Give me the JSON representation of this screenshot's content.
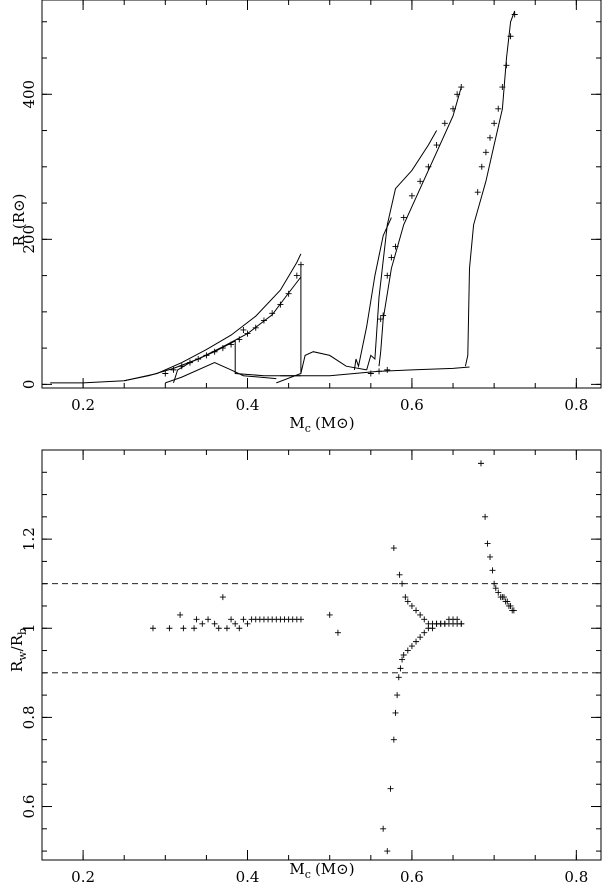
{
  "chart_data": [
    {
      "type": "scatter",
      "xlabel": "M",
      "xlabel_sub": "c",
      "xlabel_unit": "(M⊙)",
      "ylabel": "R",
      "ylabel_unit": "(R⊙)",
      "xlim": [
        0.15,
        0.83
      ],
      "ylim": [
        -5,
        530
      ],
      "xticks": [
        0.2,
        0.4,
        0.6,
        0.8
      ],
      "xtick_labels": [
        "0.2",
        "0.4",
        "0.6",
        "0.8"
      ],
      "yticks": [
        0,
        200,
        400
      ],
      "ytick_labels": [
        "0",
        "200",
        "400"
      ],
      "grid": false,
      "series": [
        {
          "kind": "line",
          "points": [
            [
              0.16,
              2
            ],
            [
              0.2,
              2
            ],
            [
              0.25,
              5
            ],
            [
              0.28,
              12
            ],
            [
              0.31,
              22
            ],
            [
              0.34,
              35
            ],
            [
              0.37,
              52
            ],
            [
              0.4,
              70
            ],
            [
              0.43,
              96
            ],
            [
              0.45,
              126
            ],
            [
              0.465,
              148
            ]
          ]
        },
        {
          "kind": "line",
          "points": [
            [
              0.25,
              5
            ],
            [
              0.29,
              15
            ],
            [
              0.32,
              30
            ],
            [
              0.35,
              48
            ],
            [
              0.38,
              68
            ],
            [
              0.41,
              94
            ],
            [
              0.44,
              130
            ],
            [
              0.46,
              168
            ],
            [
              0.465,
              180
            ]
          ]
        },
        {
          "kind": "line",
          "points": [
            [
              0.465,
              165
            ],
            [
              0.465,
              15
            ]
          ]
        },
        {
          "kind": "line",
          "points": [
            [
              0.31,
              2
            ],
            [
              0.315,
              20
            ],
            [
              0.33,
              30
            ],
            [
              0.36,
              45
            ],
            [
              0.385,
              60
            ],
            [
              0.385,
              15
            ],
            [
              0.42,
              12
            ],
            [
              0.465,
              12
            ]
          ]
        },
        {
          "kind": "line",
          "points": [
            [
              0.3,
              2
            ],
            [
              0.32,
              10
            ],
            [
              0.36,
              30
            ],
            [
              0.38,
              20
            ],
            [
              0.395,
              12
            ],
            [
              0.435,
              8
            ]
          ]
        },
        {
          "kind": "line",
          "points": [
            [
              0.435,
              2
            ],
            [
              0.465,
              15
            ],
            [
              0.47,
              40
            ],
            [
              0.48,
              45
            ],
            [
              0.5,
              40
            ],
            [
              0.52,
              25
            ],
            [
              0.545,
              20
            ]
          ]
        },
        {
          "kind": "line",
          "points": [
            [
              0.44,
              12
            ],
            [
              0.5,
              12
            ],
            [
              0.53,
              15
            ],
            [
              0.56,
              18
            ],
            [
              0.6,
              20
            ],
            [
              0.65,
              22
            ],
            [
              0.67,
              24
            ]
          ]
        },
        {
          "kind": "line",
          "points": [
            [
              0.53,
              20
            ],
            [
              0.532,
              35
            ],
            [
              0.535,
              25
            ],
            [
              0.545,
              80
            ],
            [
              0.555,
              150
            ],
            [
              0.565,
              205
            ],
            [
              0.575,
              230
            ]
          ]
        },
        {
          "kind": "line",
          "points": [
            [
              0.545,
              20
            ],
            [
              0.55,
              40
            ],
            [
              0.555,
              35
            ],
            [
              0.56,
              120
            ],
            [
              0.57,
              220
            ],
            [
              0.58,
              270
            ],
            [
              0.6,
              295
            ],
            [
              0.62,
              330
            ],
            [
              0.63,
              350
            ]
          ]
        },
        {
          "kind": "line",
          "points": [
            [
              0.56,
              25
            ],
            [
              0.562,
              45
            ],
            [
              0.565,
              90
            ],
            [
              0.575,
              160
            ],
            [
              0.59,
              220
            ],
            [
              0.61,
              270
            ],
            [
              0.63,
              320
            ],
            [
              0.65,
              370
            ],
            [
              0.66,
              410
            ]
          ]
        },
        {
          "kind": "line",
          "points": [
            [
              0.665,
              25
            ],
            [
              0.668,
              40
            ],
            [
              0.67,
              160
            ],
            [
              0.675,
              220
            ],
            [
              0.69,
              280
            ],
            [
              0.7,
              330
            ],
            [
              0.71,
              380
            ],
            [
              0.715,
              450
            ],
            [
              0.72,
              500
            ],
            [
              0.725,
              515
            ]
          ]
        },
        {
          "kind": "points",
          "points": [
            [
              0.3,
              15
            ],
            [
              0.31,
              20
            ],
            [
              0.32,
              25
            ],
            [
              0.33,
              30
            ],
            [
              0.34,
              35
            ],
            [
              0.35,
              40
            ],
            [
              0.36,
              45
            ],
            [
              0.37,
              50
            ],
            [
              0.38,
              55
            ],
            [
              0.39,
              62
            ],
            [
              0.4,
              70
            ],
            [
              0.41,
              78
            ],
            [
              0.42,
              88
            ],
            [
              0.43,
              98
            ],
            [
              0.44,
              110
            ],
            [
              0.45,
              125
            ],
            [
              0.46,
              150
            ],
            [
              0.465,
              165
            ],
            [
              0.395,
              75
            ],
            [
              0.55,
              15
            ],
            [
              0.56,
              18
            ],
            [
              0.57,
              20
            ],
            [
              0.562,
              90
            ],
            [
              0.565,
              95
            ],
            [
              0.57,
              150
            ],
            [
              0.575,
              175
            ],
            [
              0.58,
              190
            ],
            [
              0.59,
              230
            ],
            [
              0.6,
              260
            ],
            [
              0.61,
              280
            ],
            [
              0.62,
              300
            ],
            [
              0.63,
              330
            ],
            [
              0.64,
              360
            ],
            [
              0.65,
              380
            ],
            [
              0.655,
              400
            ],
            [
              0.66,
              410
            ],
            [
              0.68,
              265
            ],
            [
              0.685,
              300
            ],
            [
              0.69,
              320
            ],
            [
              0.695,
              340
            ],
            [
              0.7,
              360
            ],
            [
              0.705,
              380
            ],
            [
              0.71,
              410
            ],
            [
              0.715,
              440
            ],
            [
              0.72,
              480
            ],
            [
              0.725,
              510
            ]
          ]
        }
      ]
    },
    {
      "type": "scatter",
      "xlabel": "M",
      "xlabel_sub": "c",
      "xlabel_unit": "(M⊙)",
      "ylabel": "R",
      "ylabel_sub1": "w",
      "ylabel_mid": "/R",
      "ylabel_sub2": "b",
      "xlim": [
        0.15,
        0.83
      ],
      "ylim": [
        0.48,
        1.4
      ],
      "xticks": [
        0.2,
        0.4,
        0.6,
        0.8
      ],
      "xtick_labels": [
        "0.2",
        "0.4",
        "0.6",
        "0.8"
      ],
      "yticks": [
        0.6,
        0.8,
        1.0,
        1.2
      ],
      "ytick_labels": [
        "0.6",
        "0.8",
        "1",
        "1.2"
      ],
      "grid": false,
      "reference_lines": [
        1.1,
        0.9
      ],
      "points": [
        [
          0.285,
          1.0
        ],
        [
          0.305,
          1.0
        ],
        [
          0.318,
          1.03
        ],
        [
          0.322,
          1.0
        ],
        [
          0.335,
          1.0
        ],
        [
          0.338,
          1.02
        ],
        [
          0.345,
          1.01
        ],
        [
          0.352,
          1.02
        ],
        [
          0.36,
          1.01
        ],
        [
          0.365,
          1.0
        ],
        [
          0.37,
          1.07
        ],
        [
          0.375,
          1.0
        ],
        [
          0.38,
          1.02
        ],
        [
          0.385,
          1.01
        ],
        [
          0.39,
          1.0
        ],
        [
          0.395,
          1.02
        ],
        [
          0.4,
          1.01
        ],
        [
          0.405,
          1.02
        ],
        [
          0.41,
          1.02
        ],
        [
          0.415,
          1.02
        ],
        [
          0.42,
          1.02
        ],
        [
          0.425,
          1.02
        ],
        [
          0.43,
          1.02
        ],
        [
          0.435,
          1.02
        ],
        [
          0.44,
          1.02
        ],
        [
          0.445,
          1.02
        ],
        [
          0.45,
          1.02
        ],
        [
          0.455,
          1.02
        ],
        [
          0.46,
          1.02
        ],
        [
          0.465,
          1.02
        ],
        [
          0.5,
          1.03
        ],
        [
          0.51,
          0.99
        ],
        [
          0.565,
          0.55
        ],
        [
          0.57,
          0.5
        ],
        [
          0.574,
          0.64
        ],
        [
          0.578,
          0.75
        ],
        [
          0.58,
          0.81
        ],
        [
          0.582,
          0.85
        ],
        [
          0.584,
          0.89
        ],
        [
          0.586,
          0.91
        ],
        [
          0.588,
          0.93
        ],
        [
          0.59,
          0.94
        ],
        [
          0.595,
          0.95
        ],
        [
          0.6,
          0.96
        ],
        [
          0.605,
          0.97
        ],
        [
          0.61,
          0.98
        ],
        [
          0.615,
          0.99
        ],
        [
          0.62,
          1.0
        ],
        [
          0.625,
          1.0
        ],
        [
          0.63,
          1.01
        ],
        [
          0.635,
          1.01
        ],
        [
          0.64,
          1.01
        ],
        [
          0.645,
          1.01
        ],
        [
          0.65,
          1.01
        ],
        [
          0.655,
          1.01
        ],
        [
          0.66,
          1.01
        ],
        [
          0.578,
          1.18
        ],
        [
          0.585,
          1.12
        ],
        [
          0.588,
          1.1
        ],
        [
          0.592,
          1.07
        ],
        [
          0.595,
          1.06
        ],
        [
          0.6,
          1.05
        ],
        [
          0.605,
          1.04
        ],
        [
          0.61,
          1.03
        ],
        [
          0.615,
          1.02
        ],
        [
          0.62,
          1.01
        ],
        [
          0.625,
          1.01
        ],
        [
          0.63,
          1.01
        ],
        [
          0.635,
          1.01
        ],
        [
          0.64,
          1.01
        ],
        [
          0.645,
          1.02
        ],
        [
          0.65,
          1.02
        ],
        [
          0.655,
          1.02
        ],
        [
          0.66,
          1.01
        ],
        [
          0.684,
          1.37
        ],
        [
          0.689,
          1.25
        ],
        [
          0.692,
          1.19
        ],
        [
          0.695,
          1.16
        ],
        [
          0.698,
          1.13
        ],
        [
          0.7,
          1.1
        ],
        [
          0.702,
          1.09
        ],
        [
          0.705,
          1.08
        ],
        [
          0.708,
          1.07
        ],
        [
          0.71,
          1.07
        ],
        [
          0.712,
          1.07
        ],
        [
          0.714,
          1.06
        ],
        [
          0.716,
          1.06
        ],
        [
          0.718,
          1.05
        ],
        [
          0.72,
          1.05
        ],
        [
          0.722,
          1.04
        ],
        [
          0.724,
          1.04
        ]
      ]
    }
  ]
}
